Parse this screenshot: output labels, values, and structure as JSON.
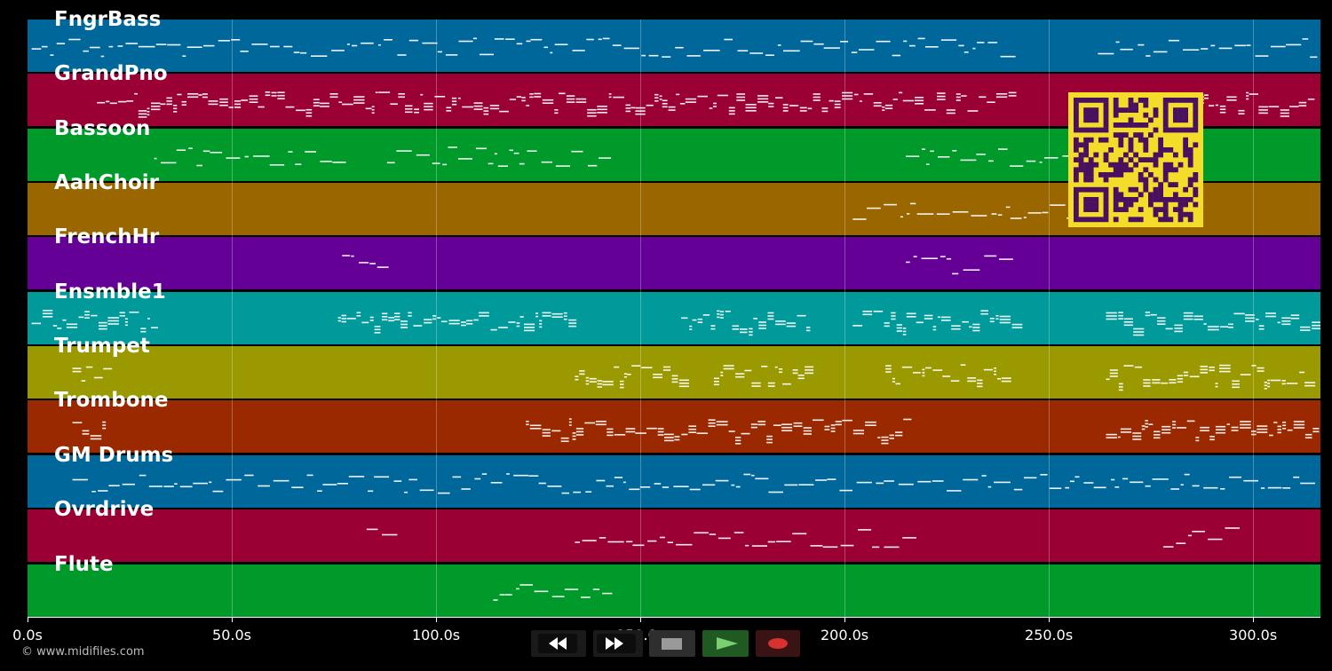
{
  "tracks": [
    {
      "name": "FngrBass",
      "color": "#00679b"
    },
    {
      "name": "GrandPno",
      "color": "#9a0033"
    },
    {
      "name": "Bassoon",
      "color": "#009a2a"
    },
    {
      "name": "AahChoir",
      "color": "#9a6600"
    },
    {
      "name": "FrenchHr",
      "color": "#650097"
    },
    {
      "name": "Ensmble1",
      "color": "#009a9a"
    },
    {
      "name": "Trumpet",
      "color": "#9a9a00"
    },
    {
      "name": "Trombone",
      "color": "#9a2900"
    },
    {
      "name": "GM Drums",
      "color": "#00679b"
    },
    {
      "name": "Ovrdrive",
      "color": "#9a0033"
    },
    {
      "name": "Flute",
      "color": "#009a2a"
    }
  ],
  "axis": {
    "ticks": [
      "0.0s",
      "50.0s",
      "100.0s",
      "150.0s",
      "200.0s",
      "250.0s",
      "300.0s"
    ],
    "tick_values": [
      0,
      50,
      100,
      150,
      200,
      250,
      300
    ],
    "max_seconds": 316.5
  },
  "footer": {
    "copyright": "© www.midifiles.com"
  },
  "controls": [
    {
      "name": "rewind",
      "icon": "rewind-icon"
    },
    {
      "name": "fast-forward",
      "icon": "fast-forward-icon"
    },
    {
      "name": "stop",
      "icon": "stop-icon"
    },
    {
      "name": "play",
      "icon": "play-icon"
    },
    {
      "name": "record",
      "icon": "record-icon"
    }
  ],
  "colors": {
    "background": "#000000",
    "notes": "#ffffff",
    "qr_fg": "#4a1060",
    "qr_bg": "#f4dc2a",
    "record": "#d93030",
    "play": "#4caf50"
  }
}
